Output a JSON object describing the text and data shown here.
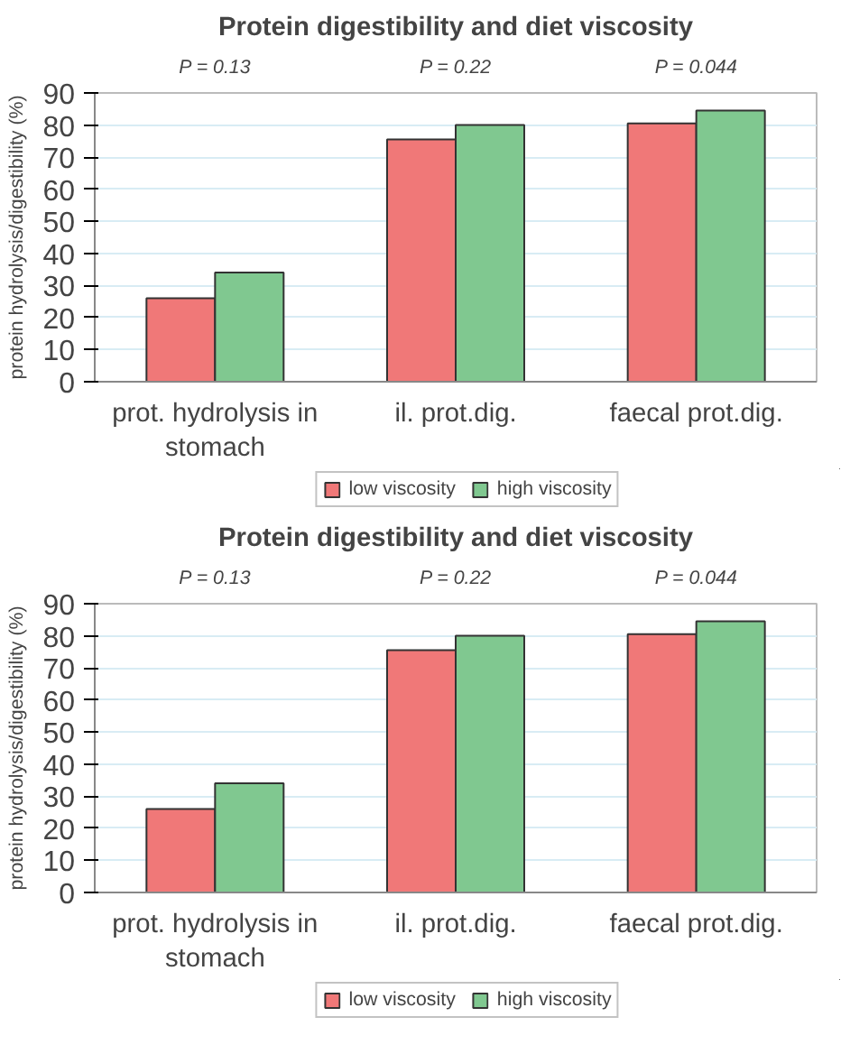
{
  "chart_data": [
    {
      "type": "bar",
      "title": "Protein digestibility and diet viscosity",
      "ylabel": "protein hydrolysis/digestibility (%)",
      "categories": [
        "prot. hydrolysis in stomach",
        "il. prot.dig.",
        "faecal prot.dig."
      ],
      "series": [
        {
          "name": "low viscosity",
          "color": "#f07878",
          "values": [
            26,
            75.5,
            80.5
          ]
        },
        {
          "name": "high viscosity",
          "color": "#80c890",
          "values": [
            34,
            80,
            84.5
          ]
        }
      ],
      "annotations": [
        "P = 0.13",
        "P = 0.22",
        "P = 0.044"
      ],
      "ylim": [
        0,
        90
      ],
      "yticks": [
        0,
        10,
        20,
        30,
        40,
        50,
        60,
        70,
        80,
        90
      ],
      "grid": "y",
      "legend": "bottom"
    },
    {
      "type": "bar",
      "title": "Protein digestibility and diet viscosity",
      "ylabel": "protein hydrolysis/digestibility (%)",
      "categories": [
        "prot. hydrolysis in stomach",
        "il. prot.dig.",
        "faecal prot.dig."
      ],
      "series": [
        {
          "name": "low viscosity",
          "color": "#f07878",
          "values": [
            26,
            75.5,
            80.5
          ]
        },
        {
          "name": "high viscosity",
          "color": "#80c890",
          "values": [
            34,
            80,
            84.5
          ]
        }
      ],
      "annotations": [
        "P = 0.13",
        "P = 0.22",
        "P = 0.044"
      ],
      "ylim": [
        0,
        90
      ],
      "yticks": [
        0,
        10,
        20,
        30,
        40,
        50,
        60,
        70,
        80,
        90
      ],
      "grid": "y",
      "legend": "bottom"
    }
  ]
}
